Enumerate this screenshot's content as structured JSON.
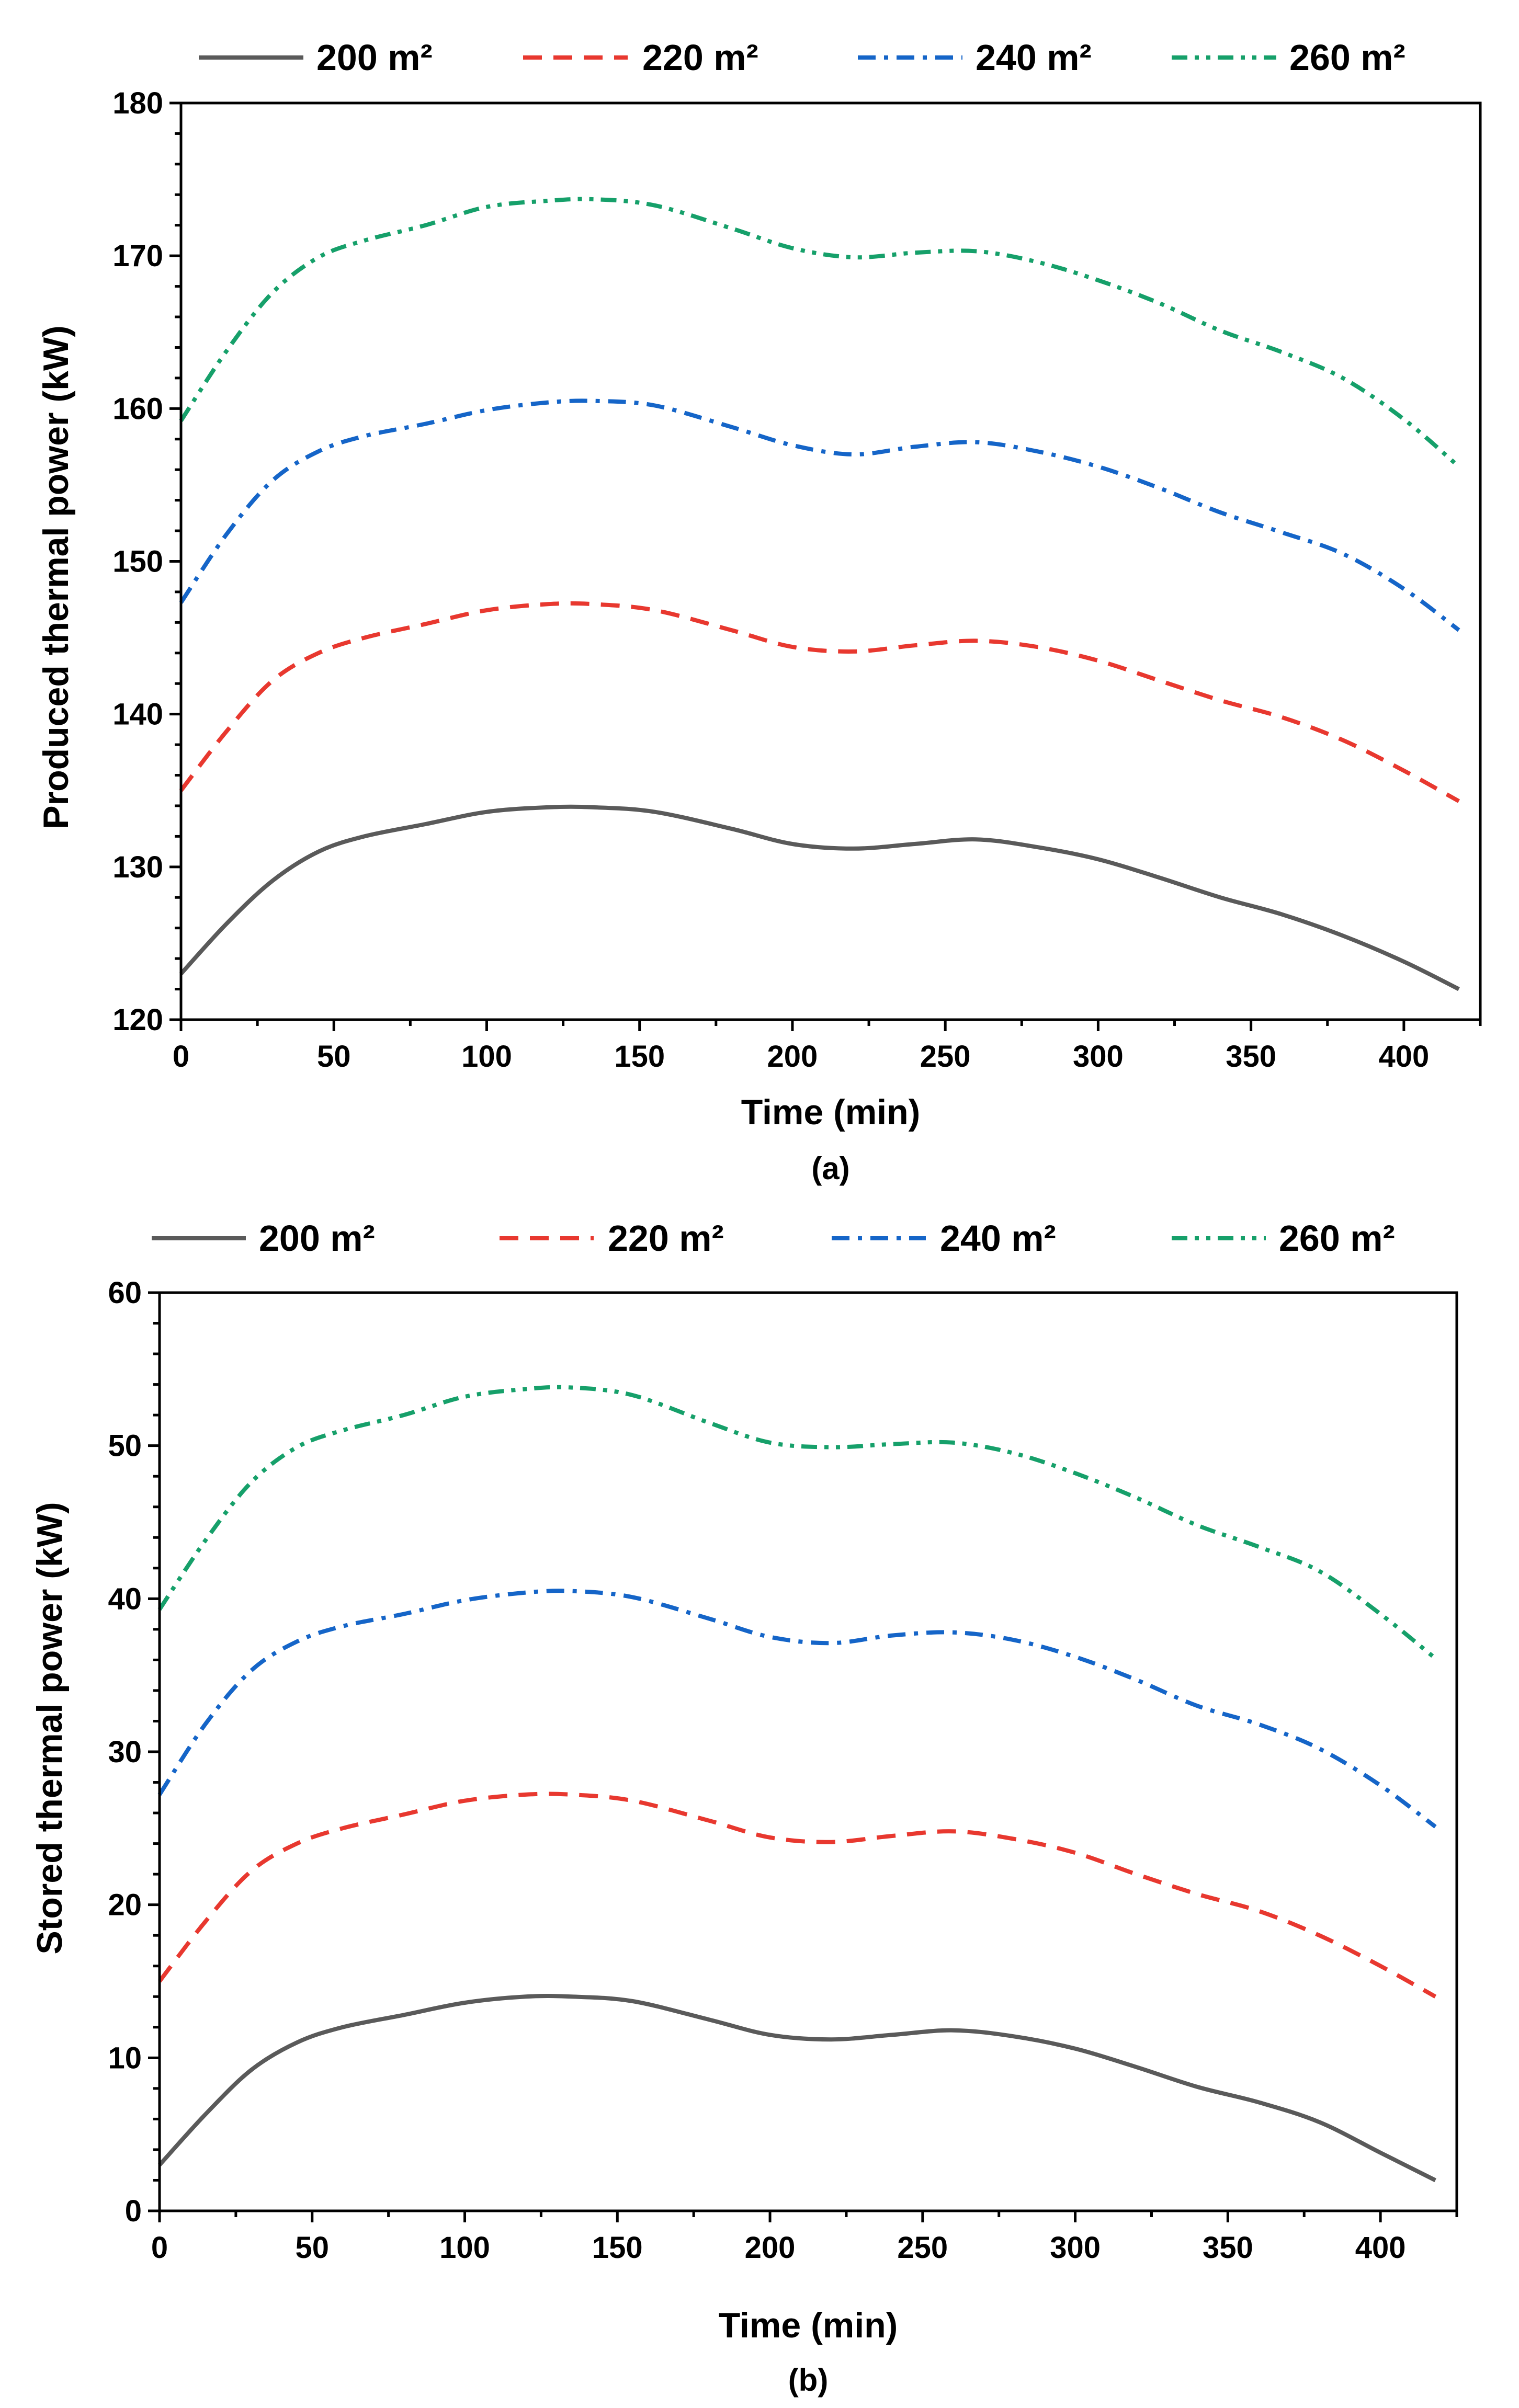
{
  "chart_data": [
    {
      "type": "line",
      "panel_label": "(a)",
      "xlabel": "Time (min)",
      "ylabel": "Produced thermal power (kW)",
      "xlim": [
        0,
        425
      ],
      "ylim": [
        120,
        180
      ],
      "x_ticks": [
        0,
        50,
        100,
        150,
        200,
        250,
        300,
        350,
        400
      ],
      "y_ticks": [
        120,
        130,
        140,
        150,
        160,
        170,
        180
      ],
      "legend_position": "top",
      "x": [
        0,
        15,
        30,
        45,
        60,
        80,
        100,
        120,
        135,
        155,
        180,
        200,
        220,
        240,
        260,
        280,
        300,
        320,
        340,
        360,
        380,
        400,
        418
      ],
      "series": [
        {
          "name": "200 m²",
          "color": "#5a5a5a",
          "style": "solid",
          "values": [
            123.0,
            126.3,
            129.1,
            131.0,
            132.0,
            132.8,
            133.6,
            133.9,
            133.9,
            133.6,
            132.5,
            131.5,
            131.2,
            131.5,
            131.8,
            131.3,
            130.5,
            129.3,
            128.0,
            126.9,
            125.5,
            123.8,
            122.0
          ]
        },
        {
          "name": "220 m²",
          "color": "#e8382f",
          "style": "dash",
          "values": [
            135.0,
            138.9,
            142.2,
            144.0,
            145.0,
            145.9,
            146.8,
            147.2,
            147.2,
            146.8,
            145.5,
            144.4,
            144.1,
            144.5,
            144.8,
            144.4,
            143.5,
            142.2,
            140.9,
            139.8,
            138.3,
            136.3,
            134.3
          ]
        },
        {
          "name": "240 m²",
          "color": "#1565c8",
          "style": "dashdot",
          "values": [
            147.3,
            151.8,
            155.3,
            157.2,
            158.2,
            159.0,
            159.9,
            160.4,
            160.5,
            160.2,
            158.8,
            157.6,
            157.0,
            157.5,
            157.8,
            157.2,
            156.2,
            154.8,
            153.2,
            151.9,
            150.5,
            148.2,
            145.5
          ]
        },
        {
          "name": "260 m²",
          "color": "#16a06a",
          "style": "dashdotdot",
          "values": [
            159.2,
            163.8,
            167.6,
            169.9,
            171.0,
            172.0,
            173.2,
            173.6,
            173.7,
            173.3,
            171.8,
            170.5,
            169.9,
            170.2,
            170.3,
            169.6,
            168.4,
            166.9,
            165.1,
            163.7,
            162.0,
            159.3,
            156.2
          ]
        }
      ]
    },
    {
      "type": "line",
      "panel_label": "(b)",
      "xlabel": "Time (min)",
      "ylabel": "Stored thermal power (kW)",
      "xlim": [
        0,
        425
      ],
      "ylim": [
        0,
        60
      ],
      "x_ticks": [
        0,
        50,
        100,
        150,
        200,
        250,
        300,
        350,
        400
      ],
      "y_ticks": [
        0,
        10,
        20,
        30,
        40,
        50,
        60
      ],
      "legend_position": "top",
      "x": [
        0,
        15,
        30,
        45,
        60,
        80,
        100,
        120,
        135,
        155,
        180,
        200,
        220,
        240,
        260,
        280,
        300,
        320,
        340,
        360,
        380,
        400,
        418
      ],
      "series": [
        {
          "name": "200 m²",
          "color": "#5a5a5a",
          "style": "solid",
          "values": [
            3.0,
            6.3,
            9.2,
            11.0,
            12.0,
            12.8,
            13.6,
            14.0,
            14.0,
            13.7,
            12.5,
            11.5,
            11.2,
            11.5,
            11.8,
            11.4,
            10.6,
            9.4,
            8.1,
            7.1,
            5.8,
            3.8,
            2.0
          ]
        },
        {
          "name": "220 m²",
          "color": "#e8382f",
          "style": "dash",
          "values": [
            15.0,
            18.9,
            22.2,
            24.0,
            25.0,
            25.9,
            26.8,
            27.2,
            27.2,
            26.8,
            25.5,
            24.4,
            24.1,
            24.5,
            24.8,
            24.3,
            23.4,
            22.0,
            20.7,
            19.6,
            18.0,
            16.0,
            14.0
          ]
        },
        {
          "name": "240 m²",
          "color": "#1565c8",
          "style": "dashdot",
          "values": [
            27.2,
            31.8,
            35.3,
            37.2,
            38.2,
            39.0,
            39.9,
            40.4,
            40.5,
            40.1,
            38.7,
            37.5,
            37.1,
            37.6,
            37.8,
            37.3,
            36.2,
            34.7,
            33.0,
            31.8,
            30.2,
            27.8,
            25.1
          ]
        },
        {
          "name": "260 m²",
          "color": "#16a06a",
          "style": "dashdotdot",
          "values": [
            39.3,
            43.8,
            47.6,
            49.9,
            51.0,
            52.0,
            53.2,
            53.7,
            53.8,
            53.3,
            51.5,
            50.2,
            49.9,
            50.1,
            50.2,
            49.5,
            48.2,
            46.6,
            44.8,
            43.4,
            41.8,
            39.0,
            36.1
          ]
        }
      ]
    }
  ]
}
